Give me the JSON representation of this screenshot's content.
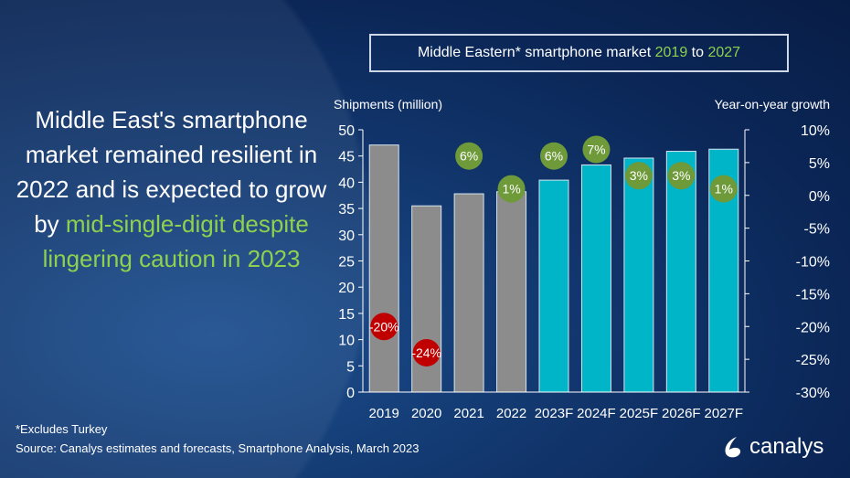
{
  "title": {
    "prefix": "Middle Eastern* smartphone market ",
    "year_start": "2019",
    "mid": " to ",
    "year_end": "2027"
  },
  "headline": {
    "white": "Middle East's smartphone market remained resilient in 2022 and is expected to grow by ",
    "green": "mid-single-digit despite lingering caution in 2023"
  },
  "footnote": "*Excludes Turkey",
  "source": "Source: Canalys estimates and forecasts, Smartphone Analysis, March 2023",
  "logo": "canalys",
  "colors": {
    "actual": "#8c8c8c",
    "forecast": "#00b5c8",
    "positive": "#6e9a3a",
    "negative": "#c00000"
  },
  "chart_data": {
    "type": "bar",
    "title": "Middle Eastern* smartphone market 2019 to 2027",
    "ylabel": "Shipments (million)",
    "y2label": "Year-on-year growth",
    "ylim": [
      0,
      50
    ],
    "y2lim": [
      -30,
      10
    ],
    "yticks": [
      "0",
      "5",
      "10",
      "15",
      "20",
      "25",
      "30",
      "35",
      "40",
      "45",
      "50"
    ],
    "y2ticks": [
      "-30%",
      "-25%",
      "-20%",
      "-15%",
      "-10%",
      "-5%",
      "0%",
      "5%",
      "10%"
    ],
    "categories": [
      "2019",
      "2020",
      "2021",
      "2022",
      "2023F",
      "2024F",
      "2025F",
      "2026F",
      "2027F"
    ],
    "values": [
      47.1,
      35.5,
      37.8,
      38.2,
      40.4,
      43.3,
      44.6,
      45.9,
      46.3
    ],
    "forecast": [
      false,
      false,
      false,
      false,
      true,
      true,
      true,
      true,
      true
    ],
    "growth": [
      -20,
      -24,
      6,
      1,
      6,
      7,
      3,
      3,
      1
    ],
    "growth_labels": [
      "-20%",
      "-24%",
      "6%",
      "1%",
      "6%",
      "7%",
      "3%",
      "3%",
      "1%"
    ]
  }
}
